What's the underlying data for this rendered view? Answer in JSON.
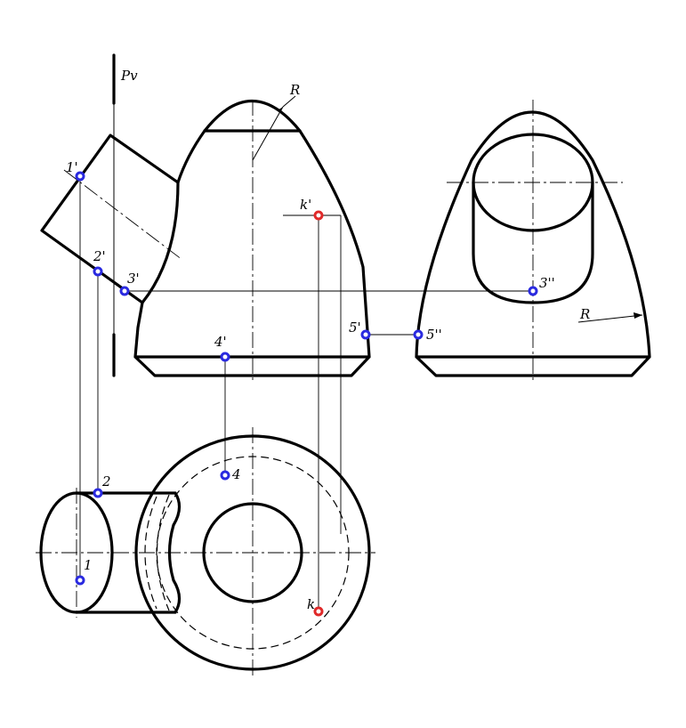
{
  "labels": {
    "plane": "Pv",
    "radius_front": "R",
    "radius_side": "R",
    "k_front": "k'",
    "k_top": "k",
    "p1_front": "1'",
    "p2_front": "2'",
    "p3_front": "3'",
    "p4_front": "4'",
    "p5_front": "5'",
    "p5_side": "5''",
    "p3_side": "3''",
    "p1_top": "1",
    "p2_top": "2",
    "p4_top": "4"
  },
  "colors": {
    "point_general": "#2a2ae0",
    "point_k": "#e02a2a"
  }
}
